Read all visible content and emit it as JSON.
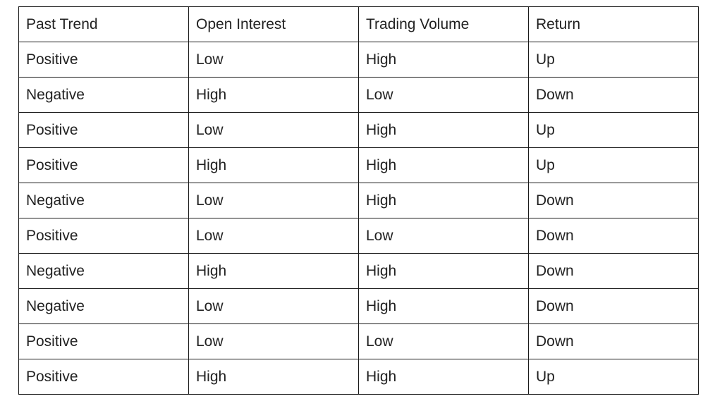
{
  "table": {
    "headers": [
      "Past Trend",
      "Open Interest",
      "Trading Volume",
      "Return"
    ],
    "rows": [
      [
        "Positive",
        "Low",
        "High",
        "Up"
      ],
      [
        "Negative",
        "High",
        "Low",
        "Down"
      ],
      [
        "Positive",
        "Low",
        "High",
        "Up"
      ],
      [
        "Positive",
        "High",
        "High",
        "Up"
      ],
      [
        "Negative",
        "Low",
        "High",
        "Down"
      ],
      [
        "Positive",
        "Low",
        "Low",
        "Down"
      ],
      [
        "Negative",
        "High",
        "High",
        "Down"
      ],
      [
        "Negative",
        "Low",
        "High",
        "Down"
      ],
      [
        "Positive",
        "Low",
        "Low",
        "Down"
      ],
      [
        "Positive",
        "High",
        "High",
        "Up"
      ]
    ]
  }
}
